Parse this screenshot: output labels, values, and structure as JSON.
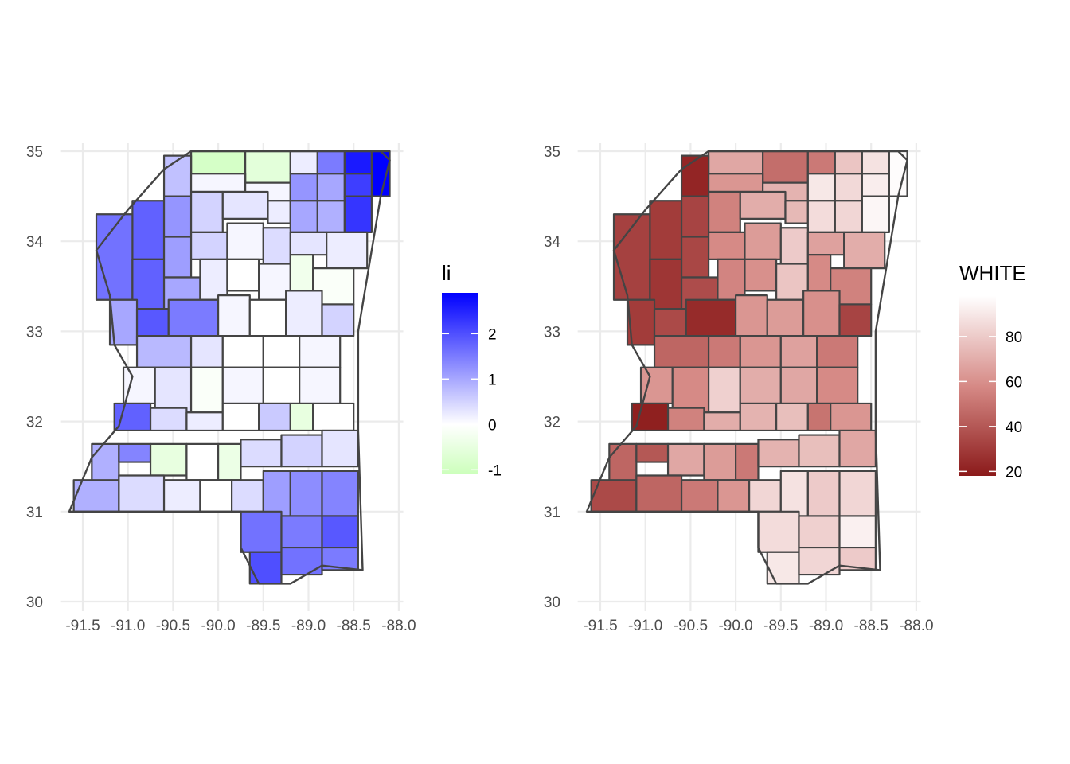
{
  "panels": [
    {
      "id": "li",
      "legend_title": "li",
      "legend_breaks": [
        "2",
        "1",
        "0",
        "-1"
      ],
      "scale": {
        "low_color": "#ccffbb",
        "mid_color": "#ffffff",
        "high_color": "#0000ff",
        "domain": [
          -1.1,
          0,
          2.9
        ]
      },
      "x_ticks": [
        "-91.5",
        "-91.0",
        "-90.5",
        "-90.0",
        "-89.5",
        "-89.0",
        "-88.5",
        "-88.0"
      ],
      "y_ticks": [
        "35",
        "34",
        "33",
        "32",
        "31",
        "30"
      ]
    },
    {
      "id": "white",
      "legend_title": "WHITE",
      "legend_breaks": [
        "80",
        "60",
        "40",
        "20"
      ],
      "scale": {
        "low_color": "#8b1a1a",
        "mid_color": "#d68a86",
        "high_color": "#ffffff",
        "domain": [
          18,
          98
        ]
      },
      "x_ticks": [
        "-91.5",
        "-91.0",
        "-90.5",
        "-90.0",
        "-89.5",
        "-89.0",
        "-88.5",
        "-88.0"
      ],
      "y_ticks": [
        "35",
        "34",
        "33",
        "32",
        "31",
        "30"
      ]
    }
  ],
  "chart_data": {
    "type": "choropleth",
    "region": "Mississippi counties",
    "xlim": [
      -91.65,
      -88.1
    ],
    "ylim": [
      30.15,
      35.0
    ],
    "counties": [
      {
        "lon": [
          -90.3,
          -89.7
        ],
        "lat": [
          34.75,
          35.0
        ],
        "li": -0.9,
        "white": 68
      },
      {
        "lon": [
          -89.7,
          -89.2
        ],
        "lat": [
          34.65,
          35.0
        ],
        "li": -0.6,
        "white": 48
      },
      {
        "lon": [
          -89.2,
          -88.9
        ],
        "lat": [
          34.75,
          35.0
        ],
        "li": 0.2,
        "white": 52
      },
      {
        "lon": [
          -88.9,
          -88.6
        ],
        "lat": [
          34.75,
          35.0
        ],
        "li": 1.5,
        "white": 78
      },
      {
        "lon": [
          -88.6,
          -88.3
        ],
        "lat": [
          34.75,
          35.0
        ],
        "li": 2.6,
        "white": 88
      },
      {
        "lon": [
          -88.3,
          -88.1
        ],
        "lat": [
          34.5,
          35.0
        ],
        "li": 2.9,
        "white": 97
      },
      {
        "lon": [
          -90.6,
          -90.3
        ],
        "lat": [
          34.5,
          34.95
        ],
        "li": 0.7,
        "white": 22
      },
      {
        "lon": [
          -90.3,
          -89.7
        ],
        "lat": [
          34.55,
          34.75
        ],
        "li": 0.1,
        "white": 62
      },
      {
        "lon": [
          -89.7,
          -89.2
        ],
        "lat": [
          34.45,
          34.65
        ],
        "li": 0.1,
        "white": 72
      },
      {
        "lon": [
          -89.2,
          -88.9
        ],
        "lat": [
          34.45,
          34.75
        ],
        "li": 1.2,
        "white": 90
      },
      {
        "lon": [
          -88.9,
          -88.6
        ],
        "lat": [
          34.45,
          34.75
        ],
        "li": 1.0,
        "white": 85
      },
      {
        "lon": [
          -88.6,
          -88.3
        ],
        "lat": [
          34.5,
          34.75
        ],
        "li": 2.2,
        "white": 92
      },
      {
        "lon": [
          -90.95,
          -90.6
        ],
        "lat": [
          33.8,
          34.45
        ],
        "li": 1.8,
        "white": 30
      },
      {
        "lon": [
          -90.6,
          -90.3
        ],
        "lat": [
          34.05,
          34.5
        ],
        "li": 1.2,
        "white": 33
      },
      {
        "lon": [
          -90.3,
          -89.95
        ],
        "lat": [
          34.1,
          34.55
        ],
        "li": 0.5,
        "white": 55
      },
      {
        "lon": [
          -89.95,
          -89.45
        ],
        "lat": [
          34.25,
          34.55
        ],
        "li": 0.3,
        "white": 70
      },
      {
        "lon": [
          -89.45,
          -89.2
        ],
        "lat": [
          34.2,
          34.45
        ],
        "li": 0.2,
        "white": 74
      },
      {
        "lon": [
          -89.2,
          -88.9
        ],
        "lat": [
          34.1,
          34.45
        ],
        "li": 1.0,
        "white": 86
      },
      {
        "lon": [
          -88.9,
          -88.6
        ],
        "lat": [
          34.1,
          34.45
        ],
        "li": 0.9,
        "white": 84
      },
      {
        "lon": [
          -88.6,
          -88.3
        ],
        "lat": [
          34.1,
          34.5
        ],
        "li": 2.3,
        "white": 95
      },
      {
        "lon": [
          -91.35,
          -90.95
        ],
        "lat": [
          33.35,
          34.3
        ],
        "li": 1.6,
        "white": 32
      },
      {
        "lon": [
          -90.95,
          -90.6
        ],
        "lat": [
          33.25,
          33.8
        ],
        "li": 1.8,
        "white": 28
      },
      {
        "lon": [
          -90.6,
          -90.3
        ],
        "lat": [
          33.6,
          34.05
        ],
        "li": 1.1,
        "white": 34
      },
      {
        "lon": [
          -90.3,
          -89.9
        ],
        "lat": [
          33.8,
          34.1
        ],
        "li": 0.5,
        "white": 58
      },
      {
        "lon": [
          -89.9,
          -89.5
        ],
        "lat": [
          33.8,
          34.2
        ],
        "li": 0.1,
        "white": 64
      },
      {
        "lon": [
          -89.5,
          -89.2
        ],
        "lat": [
          33.75,
          34.15
        ],
        "li": 0.4,
        "white": 80
      },
      {
        "lon": [
          -89.2,
          -88.8
        ],
        "lat": [
          33.85,
          34.1
        ],
        "li": 0.3,
        "white": 66
      },
      {
        "lon": [
          -88.8,
          -88.35
        ],
        "lat": [
          33.7,
          34.1
        ],
        "li": 0.2,
        "white": 70
      },
      {
        "lon": [
          -90.6,
          -90.2
        ],
        "lat": [
          33.1,
          33.6
        ],
        "li": 1.0,
        "white": 36
      },
      {
        "lon": [
          -90.2,
          -89.9
        ],
        "lat": [
          33.35,
          33.8
        ],
        "li": 0.2,
        "white": 56
      },
      {
        "lon": [
          -89.9,
          -89.55
        ],
        "lat": [
          33.45,
          33.8
        ],
        "li": 0.0,
        "white": 60
      },
      {
        "lon": [
          -89.55,
          -89.2
        ],
        "lat": [
          33.35,
          33.75
        ],
        "li": 0.1,
        "white": 78
      },
      {
        "lon": [
          -89.2,
          -88.95
        ],
        "lat": [
          33.45,
          33.85
        ],
        "li": -0.3,
        "white": 58
      },
      {
        "lon": [
          -88.95,
          -88.5
        ],
        "lat": [
          33.3,
          33.7
        ],
        "li": -0.1,
        "white": 55
      },
      {
        "lon": [
          -91.2,
          -90.9
        ],
        "lat": [
          32.85,
          33.35
        ],
        "li": 1.0,
        "white": 30
      },
      {
        "lon": [
          -90.9,
          -90.55
        ],
        "lat": [
          32.85,
          33.25
        ],
        "li": 1.9,
        "white": 35
      },
      {
        "lon": [
          -90.55,
          -90.0
        ],
        "lat": [
          32.95,
          33.35
        ],
        "li": 1.5,
        "white": 24
      },
      {
        "lon": [
          -90.0,
          -89.65
        ],
        "lat": [
          32.95,
          33.4
        ],
        "li": 0.1,
        "white": 62
      },
      {
        "lon": [
          -89.65,
          -89.25
        ],
        "lat": [
          32.95,
          33.35
        ],
        "li": 0.0,
        "white": 64
      },
      {
        "lon": [
          -89.25,
          -88.85
        ],
        "lat": [
          32.95,
          33.45
        ],
        "li": 0.2,
        "white": 60
      },
      {
        "lon": [
          -88.85,
          -88.5
        ],
        "lat": [
          32.95,
          33.3
        ],
        "li": 0.5,
        "white": 33
      },
      {
        "lon": [
          -90.9,
          -90.3
        ],
        "lat": [
          32.6,
          32.95
        ],
        "li": 0.8,
        "white": 45
      },
      {
        "lon": [
          -90.3,
          -89.95
        ],
        "lat": [
          32.6,
          32.95
        ],
        "li": 0.3,
        "white": 52
      },
      {
        "lon": [
          -89.95,
          -89.5
        ],
        "lat": [
          32.6,
          32.95
        ],
        "li": 0.0,
        "white": 62
      },
      {
        "lon": [
          -89.5,
          -89.1
        ],
        "lat": [
          32.6,
          32.95
        ],
        "li": 0.0,
        "white": 66
      },
      {
        "lon": [
          -89.1,
          -88.65
        ],
        "lat": [
          32.6,
          32.95
        ],
        "li": 0.1,
        "white": 52
      },
      {
        "lon": [
          -91.05,
          -90.7
        ],
        "lat": [
          32.2,
          32.6
        ],
        "li": 0.1,
        "white": 62
      },
      {
        "lon": [
          -90.7,
          -90.3
        ],
        "lat": [
          32.1,
          32.6
        ],
        "li": 0.3,
        "white": 58
      },
      {
        "lon": [
          -90.3,
          -89.95
        ],
        "lat": [
          32.1,
          32.6
        ],
        "li": -0.1,
        "white": 82
      },
      {
        "lon": [
          -89.95,
          -89.5
        ],
        "lat": [
          32.2,
          32.6
        ],
        "li": 0.1,
        "white": 70
      },
      {
        "lon": [
          -89.5,
          -89.1
        ],
        "lat": [
          32.2,
          32.6
        ],
        "li": 0.0,
        "white": 68
      },
      {
        "lon": [
          -89.1,
          -88.65
        ],
        "lat": [
          32.2,
          32.6
        ],
        "li": 0.1,
        "white": 58
      },
      {
        "lon": [
          -91.15,
          -90.75
        ],
        "lat": [
          31.9,
          32.2
        ],
        "li": 1.8,
        "white": 20
      },
      {
        "lon": [
          -90.75,
          -90.35
        ],
        "lat": [
          31.9,
          32.15
        ],
        "li": 0.4,
        "white": 55
      },
      {
        "lon": [
          -90.35,
          -89.95
        ],
        "lat": [
          31.9,
          32.1
        ],
        "li": 0.2,
        "white": 70
      },
      {
        "lon": [
          -89.95,
          -89.55
        ],
        "lat": [
          31.9,
          32.2
        ],
        "li": 0.0,
        "white": 72
      },
      {
        "lon": [
          -89.55,
          -89.2
        ],
        "lat": [
          31.9,
          32.2
        ],
        "li": 0.6,
        "white": 76
      },
      {
        "lon": [
          -89.2,
          -88.95
        ],
        "lat": [
          31.9,
          32.2
        ],
        "li": -0.5,
        "white": 50
      },
      {
        "lon": [
          -88.95,
          -88.5
        ],
        "lat": [
          31.9,
          32.2
        ],
        "li": 0.0,
        "white": 62
      },
      {
        "lon": [
          -91.4,
          -91.1
        ],
        "lat": [
          31.15,
          31.75
        ],
        "li": 0.9,
        "white": 45
      },
      {
        "lon": [
          -91.1,
          -90.75
        ],
        "lat": [
          31.55,
          31.75
        ],
        "li": 1.4,
        "white": 40
      },
      {
        "lon": [
          -90.75,
          -90.35
        ],
        "lat": [
          31.4,
          31.75
        ],
        "li": -0.5,
        "white": 68
      },
      {
        "lon": [
          -90.35,
          -90.0
        ],
        "lat": [
          31.35,
          31.75
        ],
        "li": 0.0,
        "white": 64
      },
      {
        "lon": [
          -90.0,
          -89.75
        ],
        "lat": [
          31.35,
          31.75
        ],
        "li": -0.4,
        "white": 52
      },
      {
        "lon": [
          -89.75,
          -89.3
        ],
        "lat": [
          31.5,
          31.8
        ],
        "li": 0.4,
        "white": 72
      },
      {
        "lon": [
          -89.3,
          -88.85
        ],
        "lat": [
          31.5,
          31.85
        ],
        "li": 0.5,
        "white": 76
      },
      {
        "lon": [
          -88.85,
          -88.45
        ],
        "lat": [
          31.5,
          31.9
        ],
        "li": 0.3,
        "white": 68
      },
      {
        "lon": [
          -91.6,
          -91.1
        ],
        "lat": [
          31.0,
          31.35
        ],
        "li": 0.9,
        "white": 35
      },
      {
        "lon": [
          -91.1,
          -90.6
        ],
        "lat": [
          31.0,
          31.4
        ],
        "li": 0.4,
        "white": 45
      },
      {
        "lon": [
          -90.6,
          -90.2
        ],
        "lat": [
          31.0,
          31.35
        ],
        "li": 0.2,
        "white": 52
      },
      {
        "lon": [
          -90.2,
          -89.85
        ],
        "lat": [
          31.0,
          31.35
        ],
        "li": 0.0,
        "white": 62
      },
      {
        "lon": [
          -89.85,
          -89.5
        ],
        "lat": [
          31.0,
          31.35
        ],
        "li": 0.4,
        "white": 84
      },
      {
        "lon": [
          -89.5,
          -89.2
        ],
        "lat": [
          30.95,
          31.45
        ],
        "li": 1.1,
        "white": 88
      },
      {
        "lon": [
          -89.2,
          -88.85
        ],
        "lat": [
          30.95,
          31.45
        ],
        "li": 1.3,
        "white": 80
      },
      {
        "lon": [
          -88.85,
          -88.45
        ],
        "lat": [
          30.95,
          31.45
        ],
        "li": 1.4,
        "white": 84
      },
      {
        "lon": [
          -89.75,
          -89.3
        ],
        "lat": [
          30.55,
          31.0
        ],
        "li": 1.6,
        "white": 86
      },
      {
        "lon": [
          -89.3,
          -88.85
        ],
        "lat": [
          30.6,
          30.95
        ],
        "li": 1.5,
        "white": 82
      },
      {
        "lon": [
          -88.85,
          -88.45
        ],
        "lat": [
          30.6,
          30.95
        ],
        "li": 1.9,
        "white": 93
      },
      {
        "lon": [
          -89.65,
          -89.3
        ],
        "lat": [
          30.2,
          30.55
        ],
        "li": 2.0,
        "white": 90
      },
      {
        "lon": [
          -89.3,
          -88.85
        ],
        "lat": [
          30.3,
          30.6
        ],
        "li": 1.6,
        "white": 84
      },
      {
        "lon": [
          -88.85,
          -88.45
        ],
        "lat": [
          30.35,
          30.6
        ],
        "li": 1.5,
        "white": 80
      }
    ]
  }
}
